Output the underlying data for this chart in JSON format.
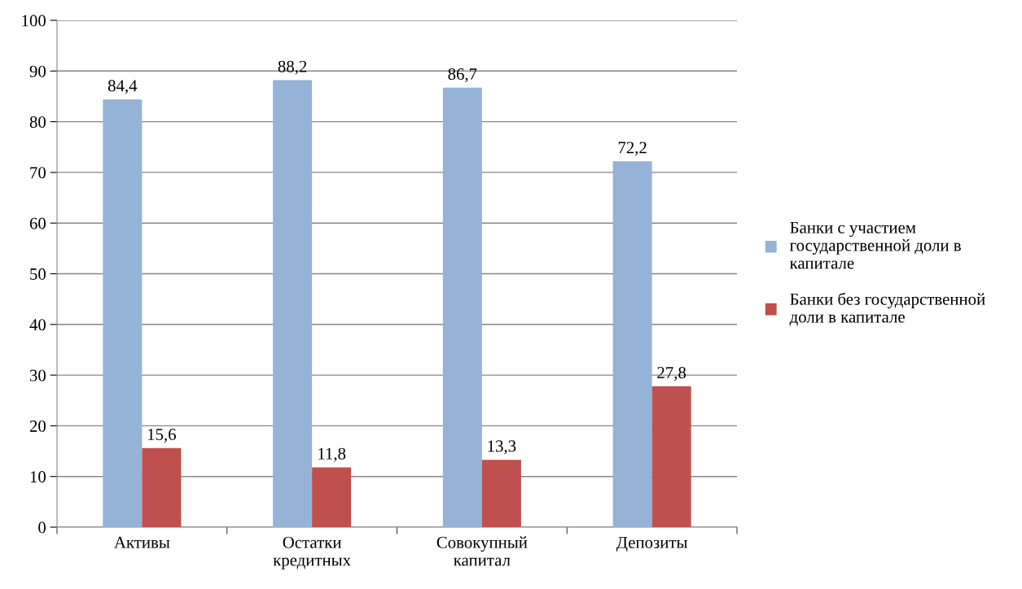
{
  "chart_data": {
    "type": "bar",
    "categories": [
      "Активы",
      "Остатки\nкредитных",
      "Совокупный\nкапитал",
      "Депозиты"
    ],
    "series": [
      {
        "name": "Банки с участием\nгосударственной доли в\nкапитале",
        "color": "#95b3d7",
        "values": [
          84.4,
          88.2,
          86.7,
          72.2
        ],
        "value_labels": [
          "84,4",
          "88,2",
          "86,7",
          "72,2"
        ]
      },
      {
        "name": "Банки без государственной\nдоли в капитале",
        "color": "#c0504d",
        "values": [
          15.6,
          11.8,
          13.3,
          27.8
        ],
        "value_labels": [
          "15,6",
          "11,8",
          "13,3",
          "27,8"
        ]
      }
    ],
    "ylim": [
      0,
      100
    ],
    "yticks": [
      0,
      10,
      20,
      30,
      40,
      50,
      60,
      70,
      80,
      90,
      100
    ],
    "grid": "y",
    "legend": "right"
  }
}
